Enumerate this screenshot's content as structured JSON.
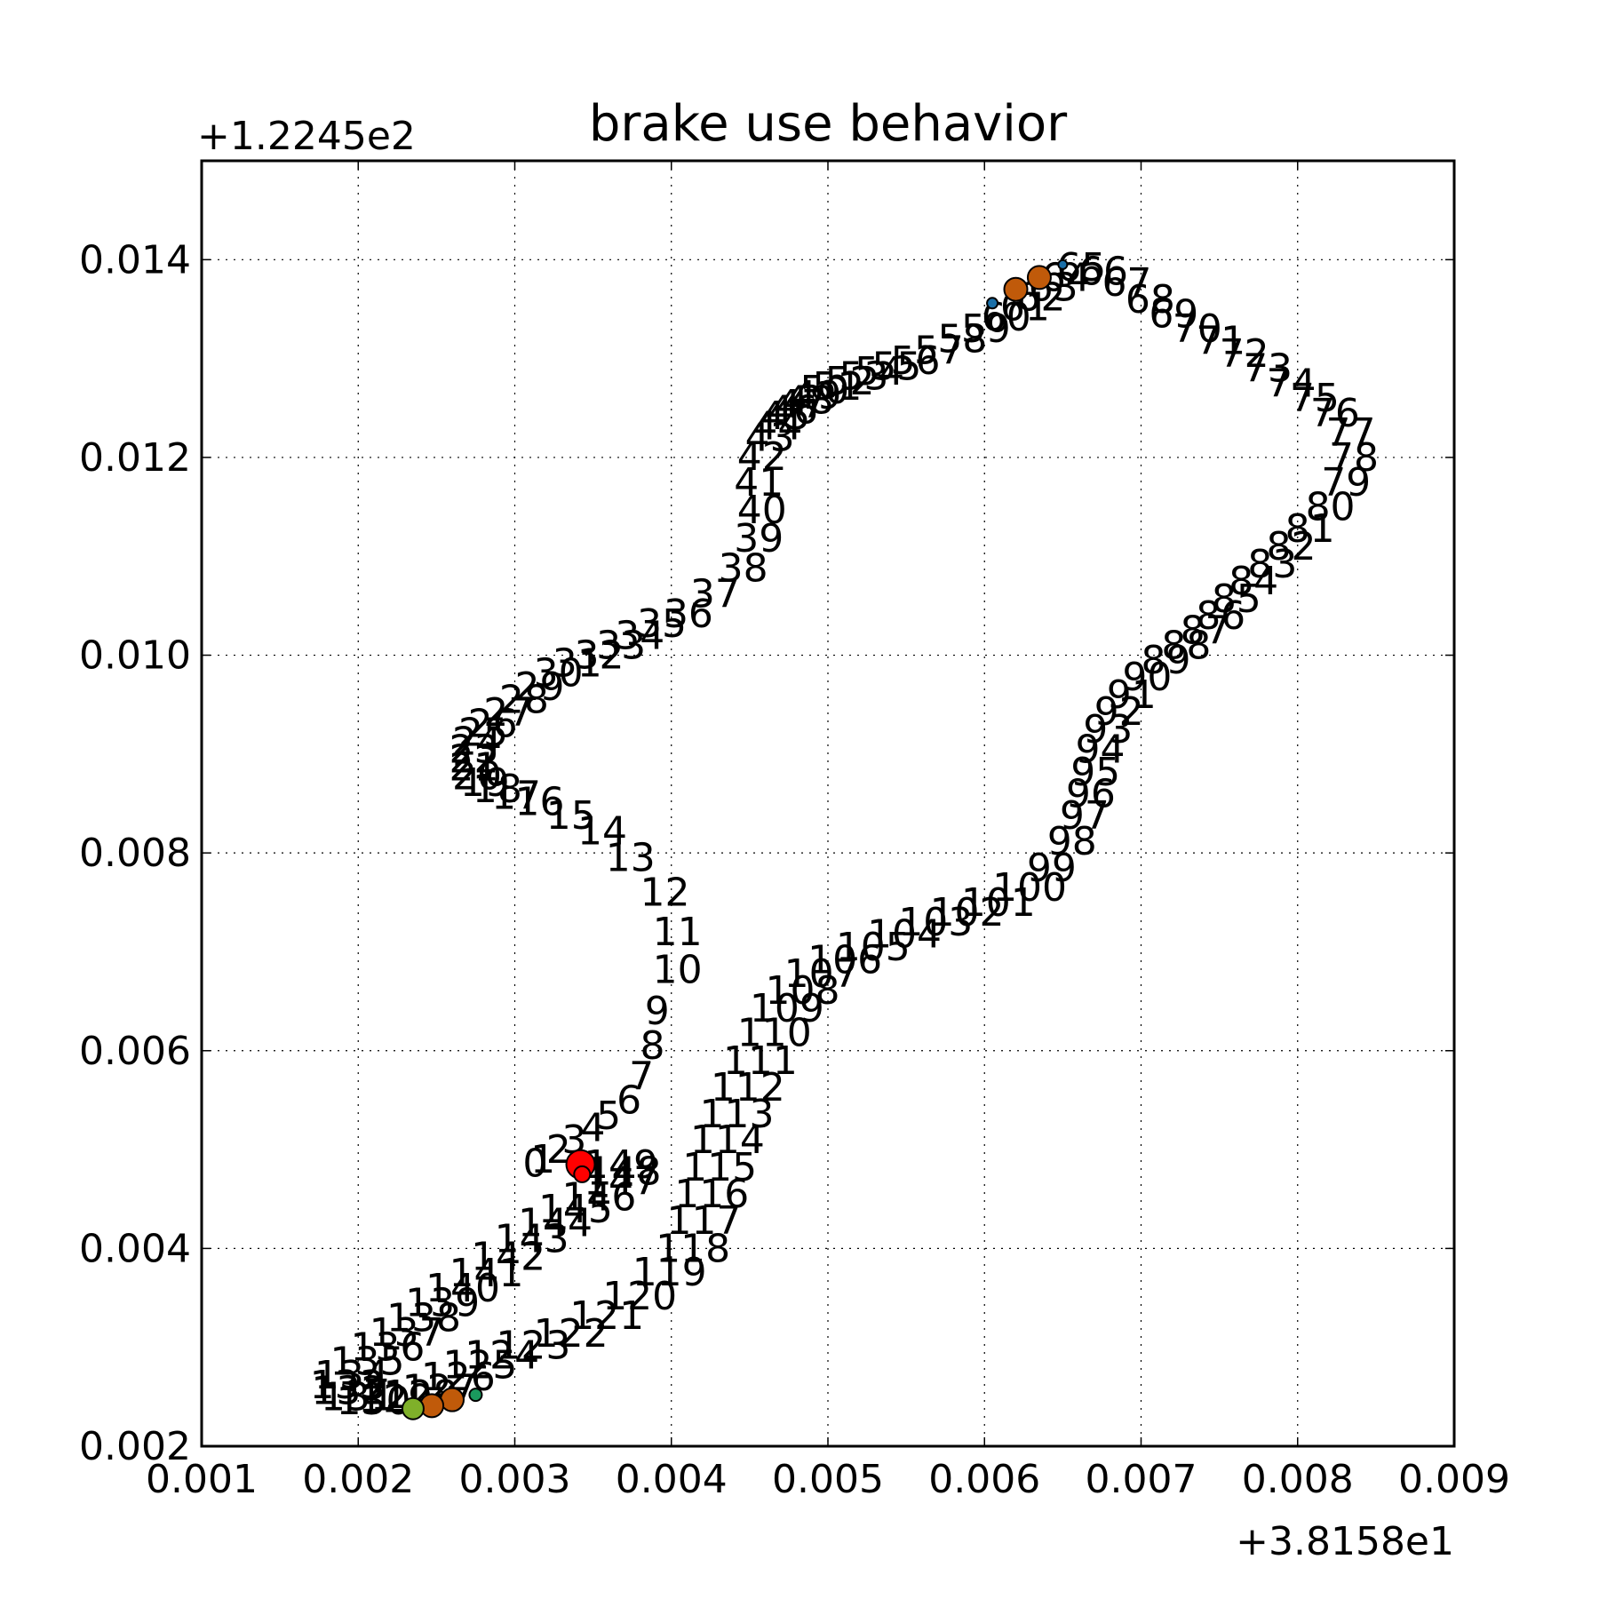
{
  "chart_data": {
    "type": "scatter",
    "title": "brake use behavior",
    "x_offset_label": "+3.8158e1",
    "y_offset_label": "+1.2245e2",
    "xlim": [
      0.001,
      0.009
    ],
    "ylim": [
      0.002,
      0.015
    ],
    "x_ticks": [
      0.001,
      0.002,
      0.003,
      0.004,
      0.005,
      0.006,
      0.007,
      0.008,
      0.009
    ],
    "x_tick_labels": [
      "0.001",
      "0.002",
      "0.003",
      "0.004",
      "0.005",
      "0.006",
      "0.007",
      "0.008",
      "0.009"
    ],
    "y_ticks": [
      0.002,
      0.004,
      0.006,
      0.008,
      0.01,
      0.012,
      0.014
    ],
    "y_tick_labels": [
      "0.002",
      "0.004",
      "0.006",
      "0.008",
      "0.010",
      "0.012",
      "0.014"
    ],
    "grid": true,
    "track": [
      [
        0.00305,
        0.00486
      ],
      [
        0.0031,
        0.0049
      ],
      [
        0.0032,
        0.005
      ],
      [
        0.0033,
        0.0051
      ],
      [
        0.00342,
        0.00522
      ],
      [
        0.00352,
        0.00534
      ],
      [
        0.00365,
        0.0055
      ],
      [
        0.00373,
        0.00574
      ],
      [
        0.0038,
        0.00605
      ],
      [
        0.00383,
        0.0064
      ],
      [
        0.00388,
        0.00682
      ],
      [
        0.00388,
        0.0072
      ],
      [
        0.0038,
        0.0076
      ],
      [
        0.00358,
        0.00795
      ],
      [
        0.0034,
        0.00822
      ],
      [
        0.0032,
        0.00838
      ],
      [
        0.003,
        0.00852
      ],
      [
        0.00285,
        0.00858
      ],
      [
        0.00273,
        0.00865
      ],
      [
        0.00265,
        0.00871
      ],
      [
        0.0026,
        0.00878
      ],
      [
        0.00258,
        0.00887
      ],
      [
        0.00258,
        0.00895
      ],
      [
        0.00258,
        0.00905
      ],
      [
        0.0026,
        0.00913
      ],
      [
        0.00264,
        0.00922
      ],
      [
        0.0027,
        0.00931
      ],
      [
        0.0028,
        0.00942
      ],
      [
        0.0029,
        0.00955
      ],
      [
        0.003,
        0.00968
      ],
      [
        0.00312,
        0.00982
      ],
      [
        0.00324,
        0.00992
      ],
      [
        0.00338,
        0.01
      ],
      [
        0.00352,
        0.0101
      ],
      [
        0.00364,
        0.0102
      ],
      [
        0.00378,
        0.01032
      ],
      [
        0.00395,
        0.01042
      ],
      [
        0.00412,
        0.01062
      ],
      [
        0.0043,
        0.01088
      ],
      [
        0.0044,
        0.01118
      ],
      [
        0.00442,
        0.01147
      ],
      [
        0.0044,
        0.01175
      ],
      [
        0.00442,
        0.01201
      ],
      [
        0.00447,
        0.0122
      ],
      [
        0.00452,
        0.01232
      ],
      [
        0.00457,
        0.01242
      ],
      [
        0.00462,
        0.01248
      ],
      [
        0.00467,
        0.01254
      ],
      [
        0.00472,
        0.01258
      ],
      [
        0.00477,
        0.01263
      ],
      [
        0.00482,
        0.01268
      ],
      [
        0.0049,
        0.01272
      ],
      [
        0.00498,
        0.01277
      ],
      [
        0.00507,
        0.01282
      ],
      [
        0.00517,
        0.01287
      ],
      [
        0.00528,
        0.01292
      ],
      [
        0.0054,
        0.01298
      ],
      [
        0.00555,
        0.01308
      ],
      [
        0.0057,
        0.0132
      ],
      [
        0.00585,
        0.0133
      ],
      [
        0.00598,
        0.01342
      ],
      [
        0.0061,
        0.01352
      ],
      [
        0.0062,
        0.01362
      ],
      [
        0.00628,
        0.01372
      ],
      [
        0.00636,
        0.01382
      ],
      [
        0.00646,
        0.01392
      ],
      [
        0.0066,
        0.01388
      ],
      [
        0.00675,
        0.01377
      ],
      [
        0.0069,
        0.0136
      ],
      [
        0.00705,
        0.01345
      ],
      [
        0.0072,
        0.0133
      ],
      [
        0.00735,
        0.01318
      ],
      [
        0.0075,
        0.01305
      ],
      [
        0.00765,
        0.0129
      ],
      [
        0.0078,
        0.01275
      ],
      [
        0.00795,
        0.0126
      ],
      [
        0.00808,
        0.01245
      ],
      [
        0.00818,
        0.01225
      ],
      [
        0.0082,
        0.012
      ],
      [
        0.00815,
        0.01175
      ],
      [
        0.00805,
        0.0115
      ],
      [
        0.00792,
        0.01128
      ],
      [
        0.0078,
        0.0111
      ],
      [
        0.00768,
        0.01092
      ],
      [
        0.00756,
        0.01075
      ],
      [
        0.00745,
        0.01057
      ],
      [
        0.00735,
        0.0104
      ],
      [
        0.00725,
        0.01025
      ],
      [
        0.00713,
        0.0101
      ],
      [
        0.007,
        0.00995
      ],
      [
        0.00688,
        0.00978
      ],
      [
        0.00678,
        0.0096
      ],
      [
        0.0067,
        0.00943
      ],
      [
        0.00663,
        0.00925
      ],
      [
        0.00658,
        0.00905
      ],
      [
        0.00655,
        0.00882
      ],
      [
        0.00652,
        0.0086
      ],
      [
        0.00648,
        0.00838
      ],
      [
        0.0064,
        0.00812
      ],
      [
        0.00627,
        0.00785
      ],
      [
        0.00605,
        0.00765
      ],
      [
        0.00585,
        0.0075
      ],
      [
        0.00565,
        0.0074
      ],
      [
        0.00545,
        0.0073
      ],
      [
        0.00525,
        0.00718
      ],
      [
        0.00505,
        0.00705
      ],
      [
        0.00487,
        0.00692
      ],
      [
        0.00472,
        0.00678
      ],
      [
        0.0046,
        0.00661
      ],
      [
        0.0045,
        0.00643
      ],
      [
        0.00442,
        0.00618
      ],
      [
        0.00433,
        0.0059
      ],
      [
        0.00425,
        0.00563
      ],
      [
        0.00418,
        0.00536
      ],
      [
        0.00412,
        0.0051
      ],
      [
        0.00407,
        0.00482
      ],
      [
        0.00402,
        0.00455
      ],
      [
        0.00397,
        0.00428
      ],
      [
        0.0039,
        0.004
      ],
      [
        0.00375,
        0.00376
      ],
      [
        0.00356,
        0.00352
      ],
      [
        0.00335,
        0.00332
      ],
      [
        0.00312,
        0.00314
      ],
      [
        0.00288,
        0.00302
      ],
      [
        0.00268,
        0.00292
      ],
      [
        0.00254,
        0.00282
      ],
      [
        0.0024,
        0.0027
      ],
      [
        0.00228,
        0.00258
      ],
      [
        0.00216,
        0.00252
      ],
      [
        0.002,
        0.00248
      ],
      [
        0.00186,
        0.00246
      ],
      [
        0.00176,
        0.0025
      ],
      [
        0.0017,
        0.00256
      ],
      [
        0.00169,
        0.00262
      ],
      [
        0.00172,
        0.00272
      ],
      [
        0.00182,
        0.00286
      ],
      [
        0.00195,
        0.003
      ],
      [
        0.00207,
        0.00315
      ],
      [
        0.00218,
        0.0033
      ],
      [
        0.0023,
        0.00345
      ],
      [
        0.00243,
        0.0036
      ],
      [
        0.00258,
        0.00375
      ],
      [
        0.00272,
        0.00392
      ],
      [
        0.00287,
        0.0041
      ],
      [
        0.00302,
        0.00426
      ],
      [
        0.00315,
        0.0044
      ],
      [
        0.0033,
        0.00452
      ],
      [
        0.00344,
        0.00468
      ],
      [
        0.00346,
        0.00478
      ],
      [
        0.00344,
        0.00485
      ]
    ],
    "markers": [
      {
        "x": 0.00342,
        "y": 0.00485,
        "size": 16,
        "color": "#ff0000"
      },
      {
        "x": 0.00343,
        "y": 0.00475,
        "size": 9,
        "color": "#ff0000"
      },
      {
        "x": 0.00605,
        "y": 0.01356,
        "size": 6,
        "color": "#1a6fa8"
      },
      {
        "x": 0.0062,
        "y": 0.0137,
        "size": 13,
        "color": "#c05a0a"
      },
      {
        "x": 0.00635,
        "y": 0.01382,
        "size": 13,
        "color": "#c05a0a"
      },
      {
        "x": 0.0065,
        "y": 0.01395,
        "size": 5,
        "color": "#1a6fa8"
      },
      {
        "x": 0.00275,
        "y": 0.00252,
        "size": 7,
        "color": "#1a9a5e"
      },
      {
        "x": 0.0026,
        "y": 0.00247,
        "size": 13,
        "color": "#c05a0a"
      },
      {
        "x": 0.00247,
        "y": 0.00241,
        "size": 13,
        "color": "#c05a0a"
      },
      {
        "x": 0.00235,
        "y": 0.00238,
        "size": 12,
        "color": "#7fb02a"
      }
    ]
  }
}
